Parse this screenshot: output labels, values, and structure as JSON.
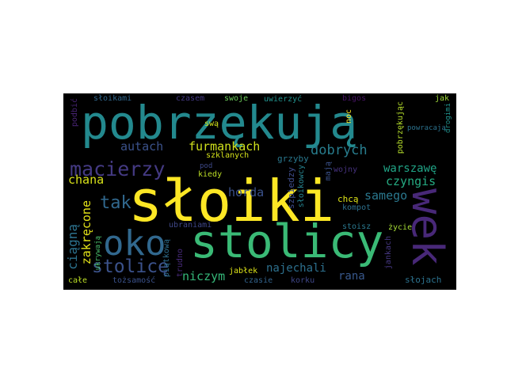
{
  "words": [
    {
      "text": "słoiki",
      "color": "#fde725"
    },
    {
      "text": "pobrzękują",
      "color": "#23898e"
    },
    {
      "text": "stolicy",
      "color": "#3aba76"
    },
    {
      "text": "oko",
      "color": "#31688e"
    },
    {
      "text": "wek",
      "color": "#482878"
    },
    {
      "text": "macierzy",
      "color": "#443a83"
    },
    {
      "text": "stolicę",
      "color": "#3b528b"
    },
    {
      "text": "furmankach",
      "color": "#d0e11c"
    },
    {
      "text": "dobrych",
      "color": "#287d8e"
    },
    {
      "text": "autach",
      "color": "#3b528b"
    },
    {
      "text": "tak",
      "color": "#31688e"
    },
    {
      "text": "chana",
      "color": "#d8e219"
    },
    {
      "text": "horda",
      "color": "#3b528b"
    },
    {
      "text": "warszawę",
      "color": "#20a486"
    },
    {
      "text": "czyngis",
      "color": "#25ab82"
    },
    {
      "text": "samego",
      "color": "#2a788e"
    },
    {
      "text": "ciągną",
      "color": "#2c728e"
    },
    {
      "text": "zakręcone",
      "color": "#e5e419"
    },
    {
      "text": "niczym",
      "color": "#35b779"
    },
    {
      "text": "najechali",
      "color": "#2d708e"
    },
    {
      "text": "rana",
      "color": "#38588c"
    },
    {
      "text": "szklanych",
      "color": "#d5e21a"
    },
    {
      "text": "pod",
      "color": "#3e4989"
    },
    {
      "text": "kiedy",
      "color": "#bddf26"
    },
    {
      "text": "grzyby",
      "color": "#2a788e"
    },
    {
      "text": "szpiedzy",
      "color": "#3e4c8a"
    },
    {
      "text": "słoikowcy",
      "color": "#26828e"
    },
    {
      "text": "mają",
      "color": "#3b528b"
    },
    {
      "text": "wojny",
      "color": "#46327e"
    },
    {
      "text": "chcą",
      "color": "#dde318"
    },
    {
      "text": "kompot",
      "color": "#2d708e"
    },
    {
      "text": "noc",
      "color": "#fde725"
    },
    {
      "text": "pobrzękując",
      "color": "#b5de2b"
    },
    {
      "text": "powracają",
      "color": "#2c728e"
    },
    {
      "text": "drogimi",
      "color": "#20928c"
    },
    {
      "text": "jak",
      "color": "#9fda3a"
    },
    {
      "text": "bigos",
      "color": "#471365"
    },
    {
      "text": "uwierzyć",
      "color": "#21918c"
    },
    {
      "text": "swoje",
      "color": "#6ccd5a"
    },
    {
      "text": "czasem",
      "color": "#443983"
    },
    {
      "text": "słoikami",
      "color": "#31688e"
    },
    {
      "text": "podbić",
      "color": "#482475"
    },
    {
      "text": "swą",
      "color": "#d2e21b"
    },
    {
      "text": "ukrywają",
      "color": "#4ac16d"
    },
    {
      "text": "piątkową",
      "color": "#2e6e8e"
    },
    {
      "text": "trudno",
      "color": "#472a7a"
    },
    {
      "text": "ubraniami",
      "color": "#3f4788"
    },
    {
      "text": "jabłek",
      "color": "#dde318"
    },
    {
      "text": "stoisz",
      "color": "#2a788e"
    },
    {
      "text": "życie",
      "color": "#a5db36"
    },
    {
      "text": "jankach",
      "color": "#453781"
    },
    {
      "text": "czasie",
      "color": "#33638d"
    },
    {
      "text": "korku",
      "color": "#3f4788"
    },
    {
      "text": "słojach",
      "color": "#2c728e"
    },
    {
      "text": "całe",
      "color": "#bddf26"
    },
    {
      "text": "tożsamość",
      "color": "#3b528b"
    }
  ]
}
